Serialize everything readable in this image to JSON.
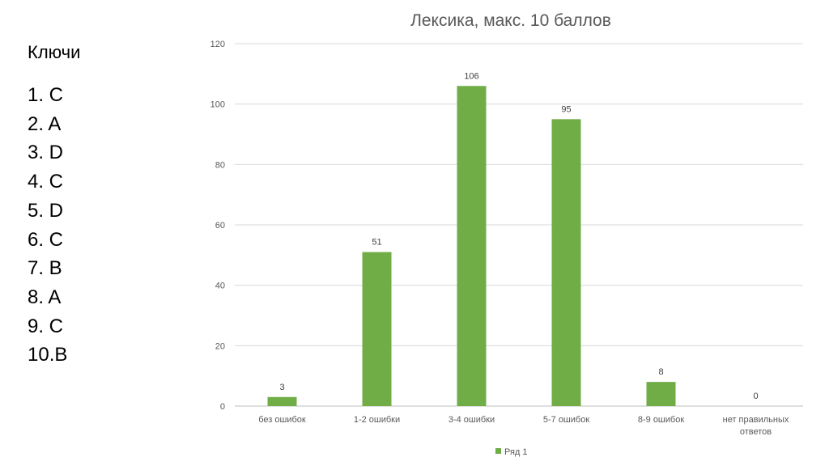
{
  "keys": {
    "title": "Ключи",
    "items": [
      "1. C",
      "2. A",
      "3. D",
      "4. C",
      "5. D",
      "6. C",
      "7. B",
      "8. A",
      "9. C",
      "10.B"
    ]
  },
  "chart_data": {
    "type": "bar",
    "title": "Лексика, макс. 10 баллов",
    "categories": [
      "без ошибок",
      "1-2 ошибки",
      "3-4 ошибки",
      "5-7 ошибок",
      "8-9 ошибок",
      "нет правильных ответов"
    ],
    "series": [
      {
        "name": "Ряд 1",
        "values": [
          3,
          51,
          106,
          95,
          8,
          0
        ],
        "color": "#70ad47"
      }
    ],
    "ylim": [
      0,
      120
    ],
    "yticks": [
      0,
      20,
      40,
      60,
      80,
      100,
      120
    ],
    "grid": true,
    "legend": "bottom",
    "data_labels": true
  }
}
